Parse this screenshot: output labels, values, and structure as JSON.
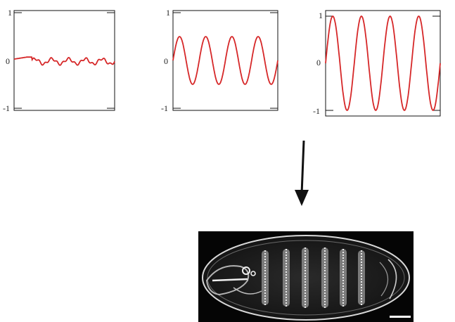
{
  "panels": [
    {
      "id": "panel-1",
      "ticks": [
        "1",
        "0",
        "-1"
      ],
      "ylim": [
        -1,
        1
      ],
      "series_color": "#d62728",
      "waveform": "noisy-low-amplitude",
      "amplitude": 0.07
    },
    {
      "id": "panel-2",
      "ticks": [
        "1",
        "0",
        "-1"
      ],
      "ylim": [
        -1,
        1
      ],
      "series_color": "#d62728",
      "waveform": "sine",
      "amplitude": 0.5,
      "cycles": 4
    },
    {
      "id": "panel-3",
      "ticks": [
        "1",
        "0",
        "-1"
      ],
      "ylim": [
        -1,
        1
      ],
      "series_color": "#d62728",
      "waveform": "sine",
      "amplitude": 1.0,
      "cycles": 4
    }
  ],
  "arrow": {
    "direction": "down",
    "color": "#111111"
  },
  "image": {
    "subject": "embryo-micrograph",
    "scale_bar": true
  }
}
